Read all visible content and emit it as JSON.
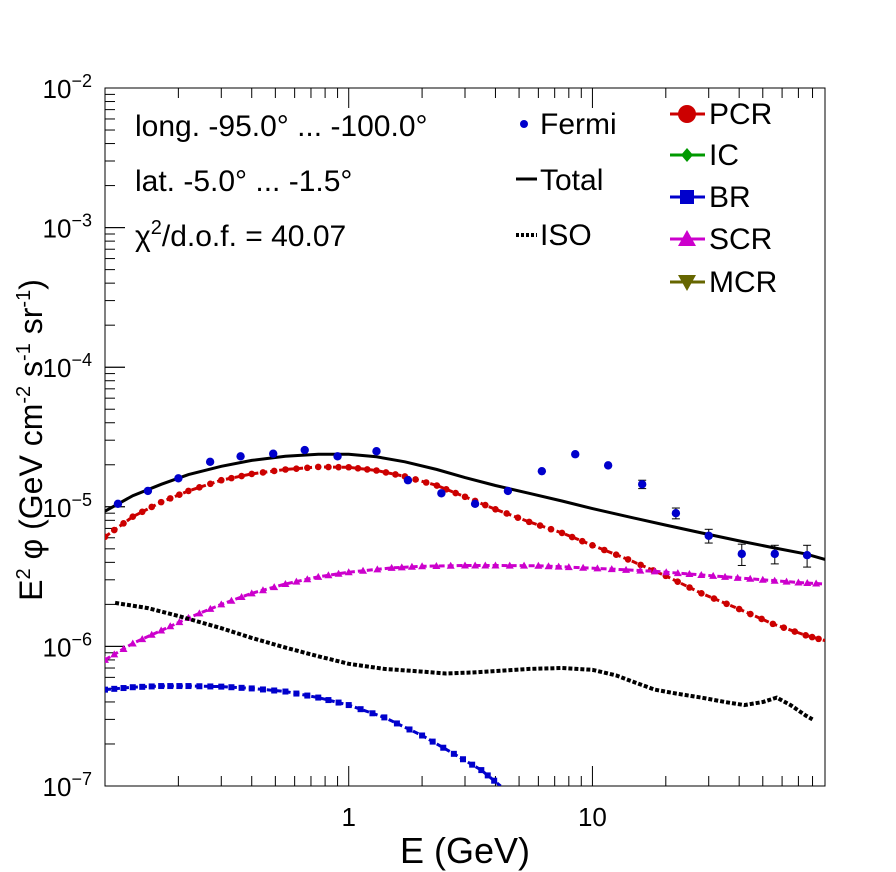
{
  "chart_data": {
    "type": "line",
    "xscale": "log",
    "yscale": "log",
    "xlim": [
      0.1,
      90
    ],
    "ylim": [
      1e-07,
      0.01
    ],
    "xlabel": "E (GeV)",
    "ylabel": {
      "base": "E",
      "sup": "2",
      "phi": " φ (GeV cm",
      "sup2": "-2",
      "mid": " s",
      "sup3": "-1",
      "mid2": " sr",
      "sup4": "-1",
      "end": ")"
    },
    "x_tick_labels": [
      {
        "v": 1,
        "label": "1"
      },
      {
        "v": 10,
        "label": "10"
      }
    ],
    "y_tick_labels": [
      {
        "v": 1e-07,
        "base": "10",
        "exp": "−7"
      },
      {
        "v": 1e-06,
        "base": "10",
        "exp": "−6"
      },
      {
        "v": 1e-05,
        "base": "10",
        "exp": "−5"
      },
      {
        "v": 0.0001,
        "base": "10",
        "exp": "−4"
      },
      {
        "v": 0.001,
        "base": "10",
        "exp": "−3"
      },
      {
        "v": 0.01,
        "base": "10",
        "exp": "−2"
      }
    ],
    "annotations": {
      "longitude": "long. -95.0° ... -100.0°",
      "latitude": "lat. -5.0° ... -1.5°",
      "chi2_sym": "χ",
      "chi2_sup": "2",
      "chi2_rest": "/d.o.f. = 40.07"
    },
    "legend_left": [
      {
        "label": "Fermi",
        "style": "marker"
      },
      {
        "label": "Total",
        "style": "solid"
      },
      {
        "label": "ISO",
        "style": "dotted"
      }
    ],
    "legend_right": [
      {
        "label": "PCR",
        "color": "#cc0000",
        "marker": "circle"
      },
      {
        "label": "IC",
        "color": "#009900",
        "marker": "diamond"
      },
      {
        "label": "BR",
        "color": "#0000cc",
        "marker": "square"
      },
      {
        "label": "SCR",
        "color": "#cc00cc",
        "marker": "triangle-up"
      },
      {
        "label": "MCR",
        "color": "#666600",
        "marker": "triangle-down"
      }
    ],
    "fermi": {
      "name": "Fermi",
      "color": "#0000cc",
      "points": [
        {
          "x": 0.113,
          "y": 1.05e-05,
          "err": 0
        },
        {
          "x": 0.15,
          "y": 1.3e-05,
          "err": 0
        },
        {
          "x": 0.2,
          "y": 1.6e-05,
          "err": 0
        },
        {
          "x": 0.27,
          "y": 2.1e-05,
          "err": 0
        },
        {
          "x": 0.36,
          "y": 2.3e-05,
          "err": 0
        },
        {
          "x": 0.49,
          "y": 2.4e-05,
          "err": 0
        },
        {
          "x": 0.66,
          "y": 2.55e-05,
          "err": 0
        },
        {
          "x": 0.9,
          "y": 2.3e-05,
          "err": 0
        },
        {
          "x": 1.3,
          "y": 2.5e-05,
          "err": 0
        },
        {
          "x": 1.75,
          "y": 1.55e-05,
          "err": 0
        },
        {
          "x": 2.4,
          "y": 1.25e-05,
          "err": 0
        },
        {
          "x": 3.3,
          "y": 1.05e-05,
          "err": 0
        },
        {
          "x": 4.5,
          "y": 1.3e-05,
          "err": 0
        },
        {
          "x": 6.2,
          "y": 1.8e-05,
          "err": 0
        },
        {
          "x": 8.5,
          "y": 2.38e-05,
          "err": 0
        },
        {
          "x": 11.6,
          "y": 1.98e-05,
          "err": 0
        },
        {
          "x": 16.0,
          "y": 1.45e-05,
          "err": 1e-06
        },
        {
          "x": 22.0,
          "y": 9e-06,
          "err": 8e-07
        },
        {
          "x": 30.0,
          "y": 6.2e-06,
          "err": 7e-07
        },
        {
          "x": 41.0,
          "y": 4.6e-06,
          "err": 8e-07
        },
        {
          "x": 56.0,
          "y": 4.6e-06,
          "err": 7e-07
        },
        {
          "x": 76.0,
          "y": 4.5e-06,
          "err": 8e-07
        }
      ]
    },
    "series": [
      {
        "name": "Total",
        "color": "#000000",
        "style": "solid",
        "x": [
          0.1,
          0.13,
          0.17,
          0.22,
          0.3,
          0.4,
          0.55,
          0.75,
          1.0,
          1.3,
          1.7,
          2.3,
          3.0,
          4.0,
          5.5,
          7.5,
          10,
          14,
          20,
          28,
          40,
          55,
          75,
          90
        ],
        "y": [
          9.3e-06,
          1.2e-05,
          1.45e-05,
          1.7e-05,
          1.95e-05,
          2.15e-05,
          2.3e-05,
          2.38e-05,
          2.38e-05,
          2.28e-05,
          2.1e-05,
          1.85e-05,
          1.62e-05,
          1.42e-05,
          1.25e-05,
          1.1e-05,
          9.7e-06,
          8.5e-06,
          7.4e-06,
          6.5e-06,
          5.7e-06,
          5.1e-06,
          4.6e-06,
          4.2e-06
        ]
      },
      {
        "name": "PCR",
        "color": "#cc0000",
        "style": "dashed-markers",
        "marker": "circle",
        "x": [
          0.1,
          0.13,
          0.17,
          0.22,
          0.3,
          0.4,
          0.55,
          0.75,
          1.0,
          1.3,
          1.7,
          2.3,
          3.0,
          4.0,
          5.5,
          7.5,
          10,
          14,
          20,
          28,
          40,
          55,
          75,
          90
        ],
        "y": [
          6.1e-06,
          8.5e-06,
          1.08e-05,
          1.3e-05,
          1.55e-05,
          1.72e-05,
          1.85e-05,
          1.93e-05,
          1.92e-05,
          1.82e-05,
          1.65e-05,
          1.42e-05,
          1.18e-05,
          9.6e-06,
          7.8e-06,
          6.5e-06,
          5.3e-06,
          4.2e-06,
          3.2e-06,
          2.4e-06,
          1.85e-06,
          1.45e-06,
          1.2e-06,
          1.1e-06
        ]
      },
      {
        "name": "SCR",
        "color": "#cc00cc",
        "style": "dashed-markers",
        "marker": "triangle-up",
        "x": [
          0.1,
          0.13,
          0.17,
          0.22,
          0.3,
          0.4,
          0.55,
          0.75,
          1.0,
          1.5,
          2.0,
          3.0,
          4.0,
          6.0,
          8.0,
          12,
          18,
          25,
          35,
          50,
          70,
          90
        ],
        "y": [
          8e-07,
          1.05e-06,
          1.3e-06,
          1.6e-06,
          2e-06,
          2.4e-06,
          2.8e-06,
          3.15e-06,
          3.4e-06,
          3.65e-06,
          3.75e-06,
          3.8e-06,
          3.8e-06,
          3.78e-06,
          3.7e-06,
          3.58e-06,
          3.45e-06,
          3.3e-06,
          3.15e-06,
          3e-06,
          2.87e-06,
          2.8e-06
        ]
      },
      {
        "name": "ISO",
        "color": "#000000",
        "style": "dotted",
        "x": [
          0.11,
          0.15,
          0.2,
          0.3,
          0.4,
          0.55,
          0.75,
          1.0,
          1.4,
          2.0,
          2.5,
          3.2,
          4.2,
          5.5,
          7.5,
          10,
          12.5,
          15,
          18,
          22,
          28,
          35,
          42,
          50,
          57,
          65,
          75,
          80
        ],
        "y": [
          2.05e-06,
          1.88e-06,
          1.65e-06,
          1.35e-06,
          1.15e-06,
          9.8e-07,
          8.5e-07,
          7.5e-07,
          6.9e-07,
          6.6e-07,
          6.4e-07,
          6.5e-07,
          6.7e-07,
          6.9e-07,
          7e-07,
          6.8e-07,
          6.2e-07,
          5.5e-07,
          4.9e-07,
          4.6e-07,
          4.3e-07,
          4e-07,
          3.8e-07,
          4e-07,
          4.3e-07,
          3.8e-07,
          3.2e-07,
          3e-07
        ]
      },
      {
        "name": "BR",
        "color": "#0000cc",
        "style": "dashed-markers",
        "marker": "square",
        "x": [
          0.1,
          0.13,
          0.17,
          0.22,
          0.3,
          0.4,
          0.55,
          0.75,
          1.0,
          1.4,
          2.0,
          2.7,
          3.5,
          4.2
        ],
        "y": [
          4.9e-07,
          5.1e-07,
          5.2e-07,
          5.2e-07,
          5.15e-07,
          5e-07,
          4.75e-07,
          4.3e-07,
          3.8e-07,
          3.1e-07,
          2.3e-07,
          1.7e-07,
          1.3e-07,
          1e-07
        ]
      }
    ]
  }
}
